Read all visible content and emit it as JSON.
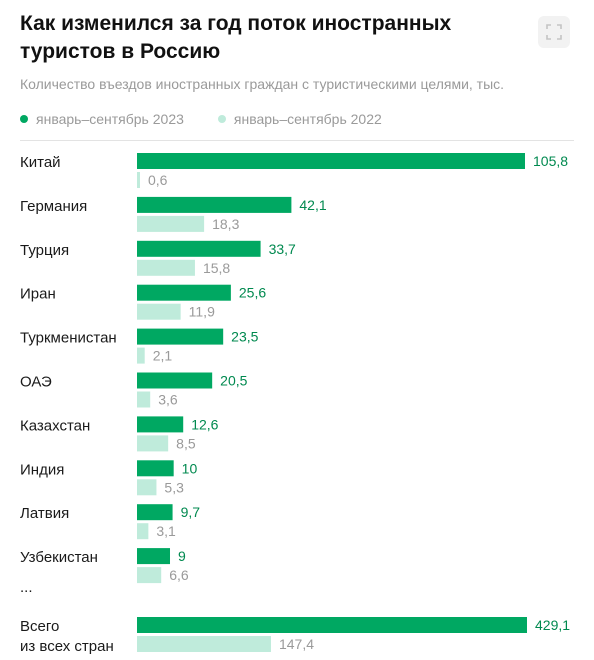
{
  "header": {
    "title": "Как изменился за год поток иностранных туристов в Россию",
    "subtitle": "Количество въездов иностранных граждан с туристическими целями, тыс.",
    "expand_icon": "expand-icon"
  },
  "legend": [
    {
      "label": "январь–сентябрь 2023",
      "color": "#00A862"
    },
    {
      "label": "январь–сентябрь 2022",
      "color": "#BFEBDB"
    }
  ],
  "ellipsis": "...",
  "chart_data": {
    "type": "bar",
    "orientation": "horizontal",
    "title": "Как изменился за год поток иностранных туристов в Россию",
    "subtitle": "Количество въездов иностранных граждан с туристическими целями, тыс.",
    "categories": [
      "Китай",
      "Германия",
      "Турция",
      "Иран",
      "Туркменистан",
      "ОАЭ",
      "Казахстан",
      "Индия",
      "Латвия",
      "Узбекистан"
    ],
    "series": [
      {
        "name": "январь–сентябрь 2023",
        "color": "#00A862",
        "values": [
          105.8,
          42.1,
          33.7,
          25.6,
          23.5,
          20.5,
          12.6,
          10,
          9.7,
          9
        ],
        "labels": [
          "105,8",
          "42,1",
          "33,7",
          "25,6",
          "23,5",
          "20,5",
          "12,6",
          "10",
          "9,7",
          "9"
        ]
      },
      {
        "name": "январь–сентябрь 2022",
        "color": "#BFEBDB",
        "values": [
          0.6,
          18.3,
          15.8,
          11.9,
          2.1,
          3.6,
          8.5,
          5.3,
          3.1,
          6.6
        ],
        "labels": [
          "0,6",
          "18,3",
          "15,8",
          "11,9",
          "2,1",
          "3,6",
          "8,5",
          "5,3",
          "3,1",
          "6,6"
        ]
      }
    ],
    "total": {
      "label_lines": [
        "Всего",
        "из всех стран"
      ],
      "values": [
        429.1,
        147.4
      ],
      "labels": [
        "429,1",
        "147,4"
      ]
    },
    "legend_position": "top-left",
    "grid": false
  }
}
